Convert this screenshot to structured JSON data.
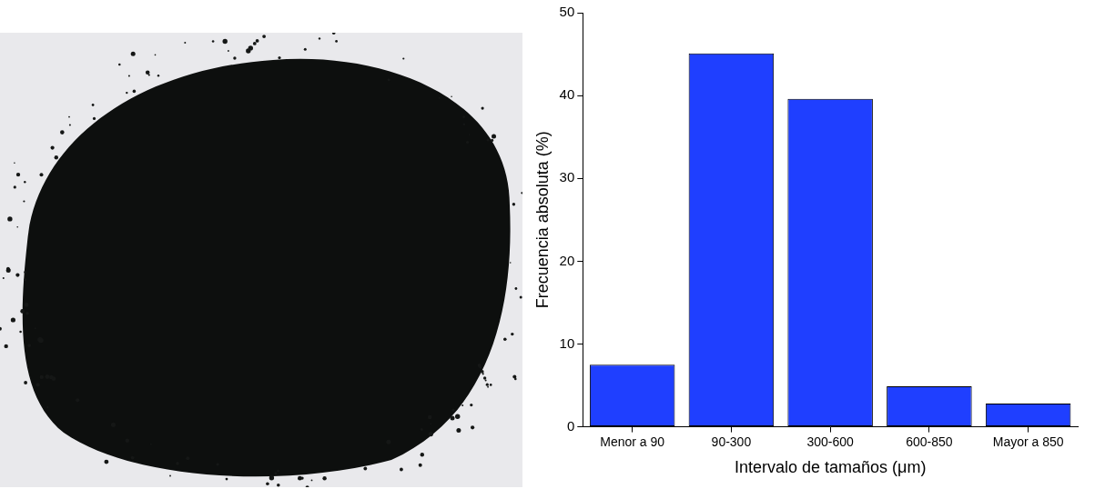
{
  "chart_data": {
    "type": "bar",
    "categories": [
      "Menor a 90",
      "90-300",
      "300-600",
      "600-850",
      "Mayor a 850"
    ],
    "values": [
      7.5,
      45.1,
      39.6,
      4.9,
      2.8
    ],
    "color": "#1f3fff",
    "x_label": "Intervalo de tamaños (μm)",
    "y_label": "Frecuencia absoluta (%)",
    "ylim": [
      0,
      50
    ],
    "yticks": [
      0,
      10,
      20,
      30,
      40,
      50
    ],
    "grid": false
  }
}
